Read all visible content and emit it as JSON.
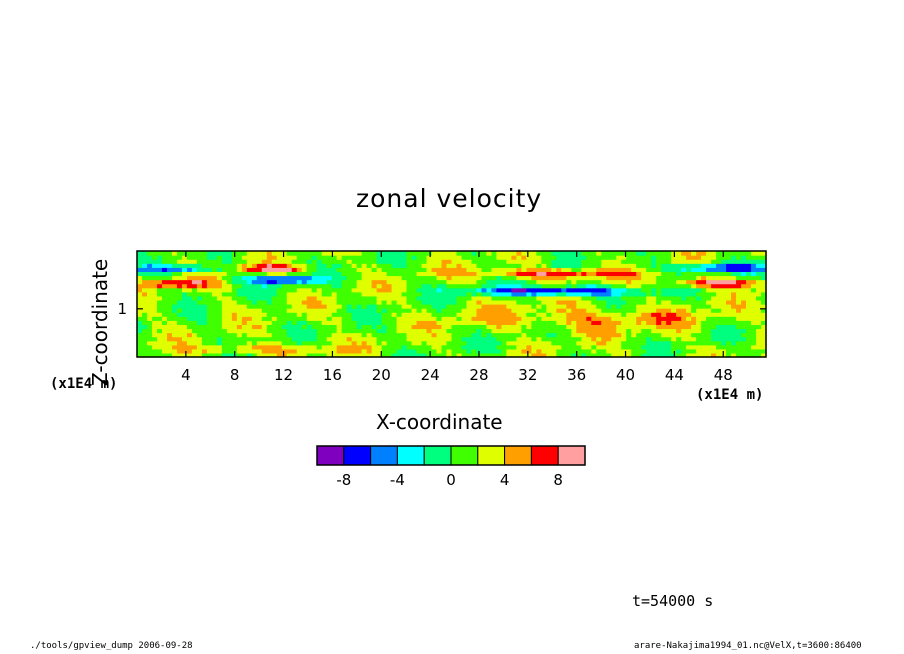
{
  "chart_data": {
    "type": "heatmap",
    "title": "zonal velocity",
    "xlabel": "X-coordinate",
    "ylabel": "Z-coordinate",
    "x_unit": "(x1E4 m)",
    "y_unit": "(x1E4 m)",
    "xlim": [
      0,
      51.5
    ],
    "ylim": [
      0.5,
      1.6
    ],
    "x_ticks": [
      "4",
      "8",
      "12",
      "16",
      "20",
      "24",
      "28",
      "32",
      "36",
      "40",
      "44",
      "48"
    ],
    "x_tick_values": [
      4,
      8,
      12,
      16,
      20,
      24,
      28,
      32,
      36,
      40,
      44,
      48
    ],
    "y_ticks": [
      "1"
    ],
    "y_tick_values": [
      1
    ],
    "colorbar": {
      "levels": [
        -10,
        -8,
        -6,
        -4,
        -2,
        0,
        2,
        4,
        6,
        8,
        10
      ],
      "colors": [
        "#7f00bf",
        "#0000ff",
        "#007fff",
        "#00ffff",
        "#00ff7f",
        "#3fff00",
        "#dfff00",
        "#ff9f00",
        "#ff0000",
        "#ff9f9f"
      ],
      "tick_labels": [
        "-8",
        "-4",
        "0",
        "4",
        "8"
      ],
      "tick_values": [
        -8,
        -4,
        0,
        4,
        8
      ]
    },
    "features": [
      {
        "x": [
          8,
          14
        ],
        "z": [
          1.4,
          1.44
        ],
        "u": 9
      },
      {
        "x": [
          9,
          15
        ],
        "z": [
          1.28,
          1.33
        ],
        "u": -8
      },
      {
        "x": [
          0,
          6
        ],
        "z": [
          1.24,
          1.29
        ],
        "u": 8
      },
      {
        "x": [
          0,
          7
        ],
        "z": [
          1.4,
          1.44
        ],
        "u": -6
      },
      {
        "x": [
          28,
          40
        ],
        "z": [
          1.16,
          1.22
        ],
        "u": -9
      },
      {
        "x": [
          28,
          40
        ],
        "z": [
          1.34,
          1.4
        ],
        "u": 8
      },
      {
        "x": [
          44,
          51.5
        ],
        "z": [
          1.24,
          1.3
        ],
        "u": 9
      },
      {
        "x": [
          44,
          51.5
        ],
        "z": [
          1.4,
          1.46
        ],
        "u": -7
      },
      {
        "x": [
          28,
          46
        ],
        "z": [
          0.8,
          1.0
        ],
        "u": 5
      },
      {
        "x": [
          4,
          16
        ],
        "z": [
          0.55,
          0.62
        ],
        "u": 5
      }
    ]
  },
  "time_label": "t=54000 s",
  "footer_left": "./tools/gpview_dump  2006-09-28",
  "footer_right": "arare-Nakajima1994_01.nc@VelX,t=3600:86400"
}
